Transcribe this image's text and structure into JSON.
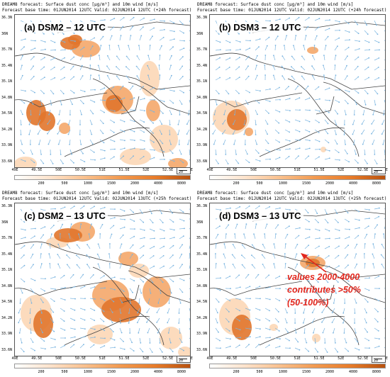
{
  "colors": {
    "dust_light": "#fbd2ad",
    "dust_mid": "#f4a76a",
    "dust_dark": "#e1752c",
    "wind": "#79b4e0",
    "border": "#444444",
    "annotation": "#e3261c"
  },
  "panels": [
    {
      "title": "(a) DSM2 – 12 UTC",
      "header1": "DREAM8 forecast: Surface dust conc [μg/m³] and 10m wind [m/s]",
      "header2": "Forecast base time: 01JUN2014 12UTC   Valid: 02JUN2014 12UTC (+24h forecast)"
    },
    {
      "title": "(b) DSM3 – 12 UTC",
      "header1": "DREAM8 forecast: Surface dust conc [μg/m³] and 10m wind [m/s]",
      "header2": "Forecast base time: 01JUN2014 12UTC   Valid: 02JUN2014 12UTC (+24h forecast)"
    },
    {
      "title": "(c) DSM2 – 13 UTC",
      "header1": "DREAM8 forecast: Surface dust conc [μg/m³] and 10m wind [m/s]",
      "header2": "Forecast base time: 01JUN2014 12UTC   Valid: 02JUN2014 13UTC (+25h forecast)"
    },
    {
      "title": "(d) DSM3 – 13 UTC",
      "header1": "DREAM8 forecast: Surface dust conc [μg/m³] and 10m wind [m/s]",
      "header2": "Forecast base time: 01JUN2014 12UTC   Valid: 02JUN2014 13UTC (+25h forecast)"
    }
  ],
  "lat_labels": [
    "36.3N",
    "36N",
    "35.7N",
    "35.4N",
    "35.1N",
    "34.8N",
    "34.5N",
    "34.2N",
    "33.9N",
    "33.6N"
  ],
  "lon_labels": [
    "49E",
    "49.5E",
    "50E",
    "50.5E",
    "51E",
    "51.5E",
    "52E",
    "52.5E",
    "53E"
  ],
  "colorbar_labels": [
    "200",
    "500",
    "1000",
    "1500",
    "2000",
    "4000",
    "8000"
  ],
  "wind_ref": "20",
  "annotation": {
    "line1": "values 2000-4000",
    "line2": "contributes >50%",
    "line3": "(50-100%)"
  }
}
